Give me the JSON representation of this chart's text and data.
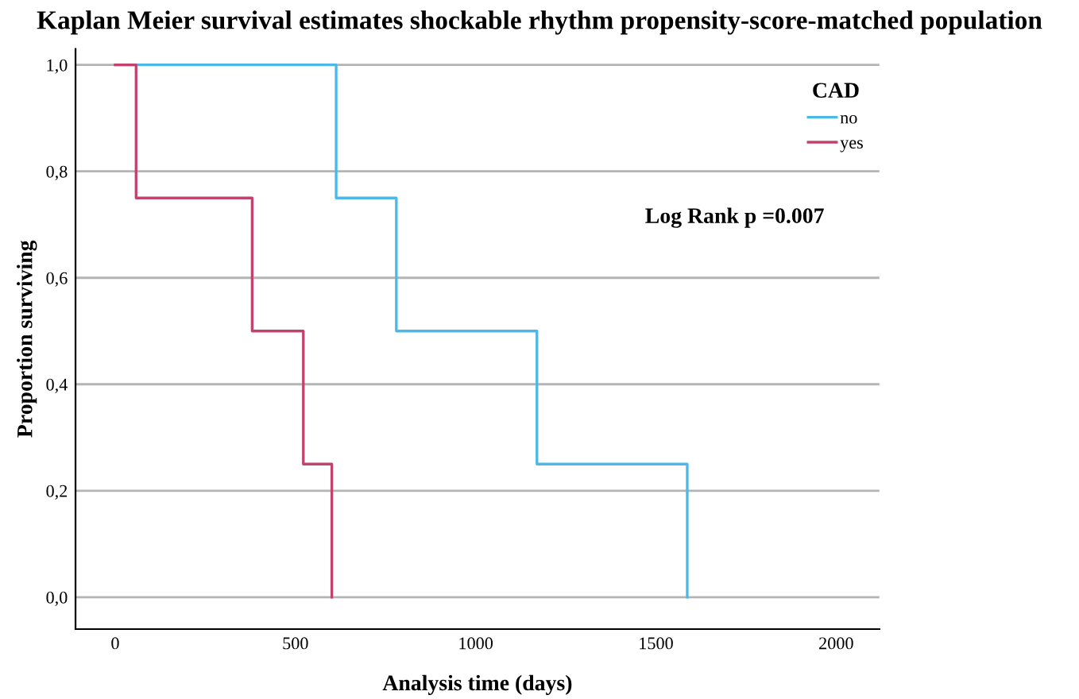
{
  "chart_data": {
    "type": "step",
    "title": "Kaplan Meier survival estimates shockable rhythm propensity-score-matched population",
    "xlabel": "Analysis time (days)",
    "ylabel": "Proportion surviving",
    "legend_title": "CAD",
    "series": [
      {
        "name": "no",
        "color": "#4cb8ea",
        "x": [
          0,
          613,
          780,
          1170,
          1587
        ],
        "values": [
          1.0,
          0.75,
          0.5,
          0.25,
          0.0
        ]
      },
      {
        "name": "yes",
        "color": "#c2426f",
        "x": [
          0,
          58,
          380,
          522,
          601
        ],
        "values": [
          1.0,
          0.75,
          0.5,
          0.25,
          0.0
        ]
      }
    ],
    "xlim": [
      -110,
      2120
    ],
    "xticks": [
      0,
      500,
      1000,
      1500,
      2000
    ],
    "ylim": [
      -0.06,
      1.03
    ],
    "yticks": [
      {
        "value": 0.0,
        "label": "0,0"
      },
      {
        "value": 0.2,
        "label": "0,2"
      },
      {
        "value": 0.4,
        "label": "0,4"
      },
      {
        "value": 0.6,
        "label": "0,6"
      },
      {
        "value": 0.8,
        "label": "0,8"
      },
      {
        "value": 1.0,
        "label": "1,0"
      }
    ],
    "grid": "y",
    "legend": "top right",
    "annotations": [
      "Log Rank p =0.007"
    ]
  }
}
